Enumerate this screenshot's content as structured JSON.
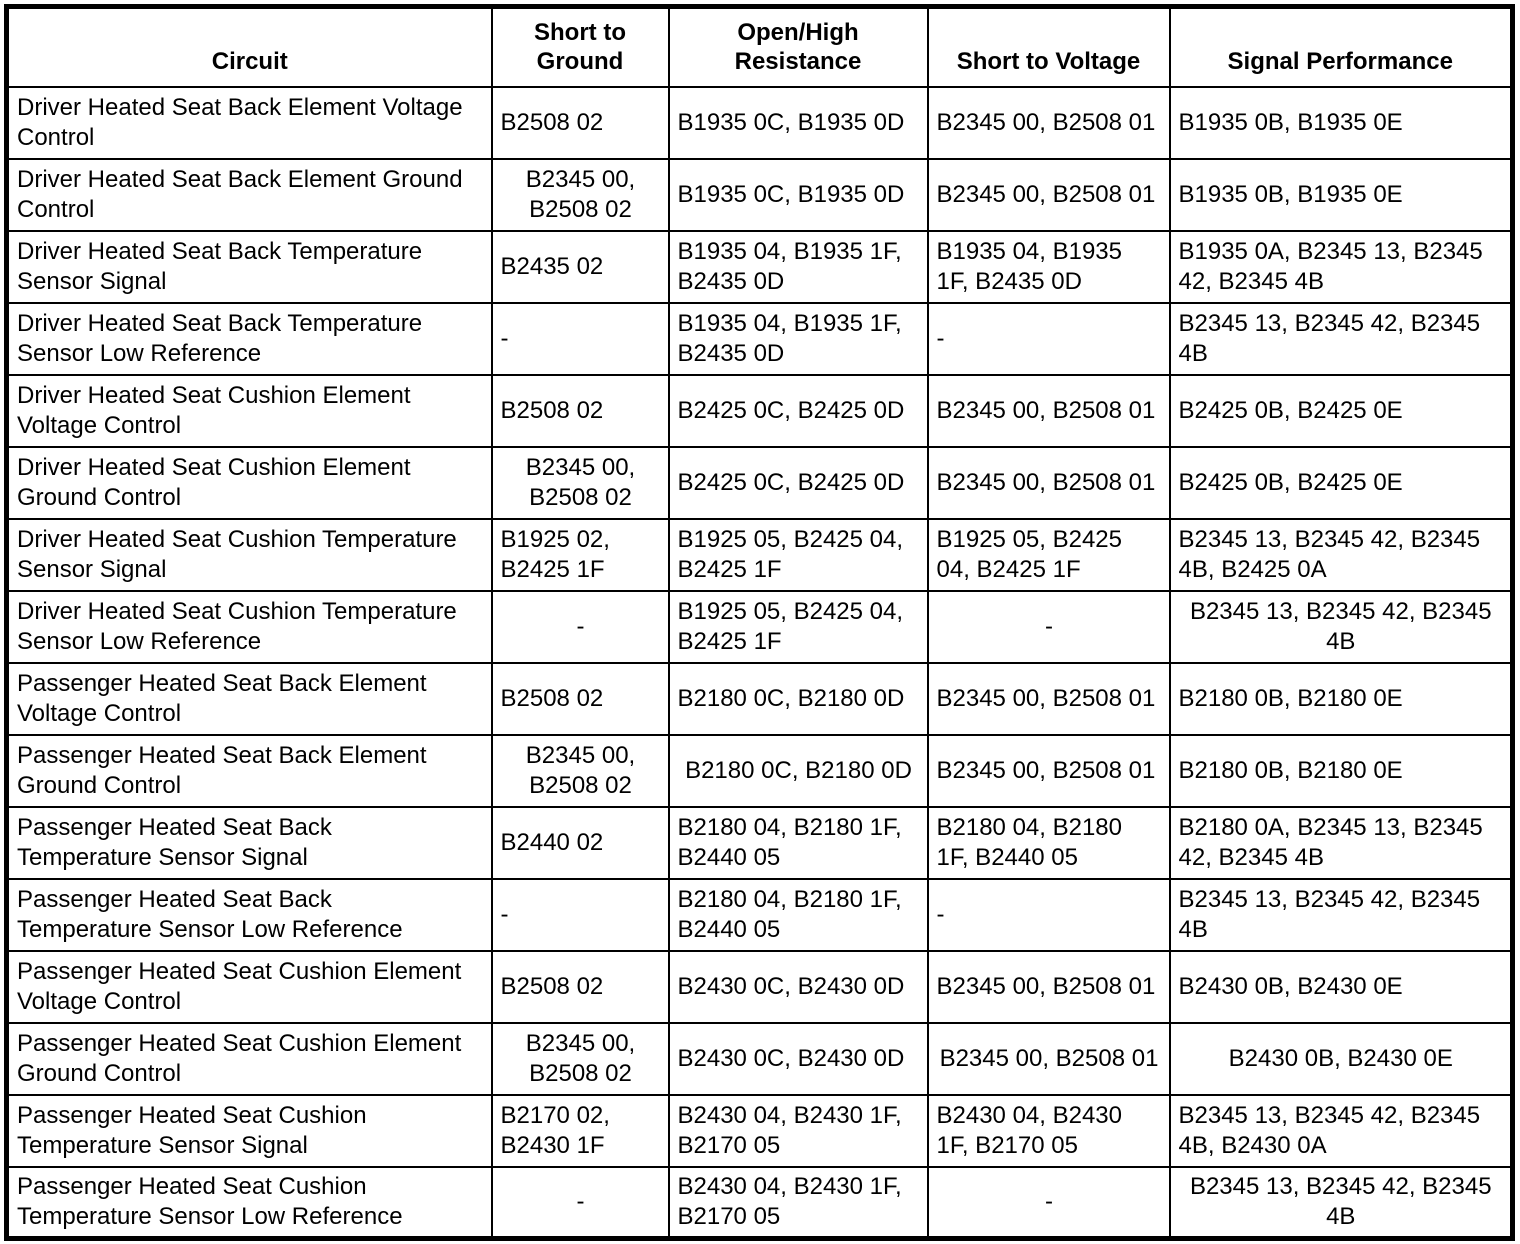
{
  "table": {
    "columns": [
      {
        "label": "Circuit"
      },
      {
        "label": "Short to\nGround"
      },
      {
        "label": "Open/High\nResistance"
      },
      {
        "label": "Short to Voltage"
      },
      {
        "label": "Signal Performance"
      }
    ],
    "rows": [
      {
        "cells": [
          {
            "text": "Driver Heated Seat Back Element Voltage\nControl",
            "align": "left"
          },
          {
            "text": "B2508 02",
            "align": "left"
          },
          {
            "text": "B1935 0C, B1935 0D",
            "align": "left"
          },
          {
            "text": "B2345 00, B2508 01",
            "align": "left"
          },
          {
            "text": "B1935 0B, B1935 0E",
            "align": "left"
          }
        ]
      },
      {
        "cells": [
          {
            "text": "Driver Heated Seat Back Element Ground\nControl",
            "align": "left"
          },
          {
            "text": "B2345 00,\nB2508 02",
            "align": "center"
          },
          {
            "text": "B1935 0C, B1935 0D",
            "align": "left"
          },
          {
            "text": "B2345 00, B2508 01",
            "align": "left"
          },
          {
            "text": "B1935 0B, B1935 0E",
            "align": "left"
          }
        ]
      },
      {
        "cells": [
          {
            "text": "Driver Heated Seat Back Temperature\nSensor Signal",
            "align": "left"
          },
          {
            "text": "B2435 02",
            "align": "left"
          },
          {
            "text": "B1935 04, B1935 1F,\nB2435 0D",
            "align": "left"
          },
          {
            "text": "B1935 04, B1935\n1F, B2435 0D",
            "align": "left"
          },
          {
            "text": "B1935 0A, B2345 13, B2345\n42, B2345 4B",
            "align": "left"
          }
        ]
      },
      {
        "cells": [
          {
            "text": "Driver Heated Seat Back Temperature\nSensor Low Reference",
            "align": "left"
          },
          {
            "text": "-",
            "align": "left"
          },
          {
            "text": "B1935 04, B1935 1F,\nB2435 0D",
            "align": "left"
          },
          {
            "text": "-",
            "align": "left"
          },
          {
            "text": "B2345 13, B2345 42, B2345\n4B",
            "align": "left"
          }
        ]
      },
      {
        "cells": [
          {
            "text": "Driver Heated Seat Cushion Element\nVoltage Control",
            "align": "left"
          },
          {
            "text": "B2508 02",
            "align": "left"
          },
          {
            "text": "B2425 0C, B2425 0D",
            "align": "left"
          },
          {
            "text": "B2345 00, B2508 01",
            "align": "left"
          },
          {
            "text": "B2425 0B, B2425 0E",
            "align": "left"
          }
        ]
      },
      {
        "cells": [
          {
            "text": "Driver Heated Seat Cushion Element\nGround Control",
            "align": "left"
          },
          {
            "text": "B2345 00,\nB2508 02",
            "align": "center"
          },
          {
            "text": "B2425 0C, B2425 0D",
            "align": "left"
          },
          {
            "text": "B2345 00, B2508 01",
            "align": "left"
          },
          {
            "text": "B2425 0B, B2425 0E",
            "align": "left"
          }
        ]
      },
      {
        "cells": [
          {
            "text": "Driver Heated Seat Cushion Temperature\nSensor Signal",
            "align": "left"
          },
          {
            "text": "B1925 02,\nB2425 1F",
            "align": "left"
          },
          {
            "text": "B1925 05, B2425 04,\nB2425 1F",
            "align": "left"
          },
          {
            "text": "B1925 05, B2425\n04, B2425 1F",
            "align": "left"
          },
          {
            "text": "B2345 13, B2345 42, B2345\n4B, B2425 0A",
            "align": "left"
          }
        ]
      },
      {
        "cells": [
          {
            "text": "Driver Heated Seat Cushion Temperature\nSensor Low Reference",
            "align": "left"
          },
          {
            "text": "-",
            "align": "center"
          },
          {
            "text": "B1925 05, B2425 04,\nB2425 1F",
            "align": "left"
          },
          {
            "text": "-",
            "align": "center"
          },
          {
            "text": "B2345 13, B2345 42, B2345\n4B",
            "align": "center"
          }
        ]
      },
      {
        "cells": [
          {
            "text": "Passenger Heated Seat Back Element\nVoltage Control",
            "align": "left"
          },
          {
            "text": "B2508 02",
            "align": "left"
          },
          {
            "text": "B2180 0C, B2180 0D",
            "align": "left"
          },
          {
            "text": "B2345 00, B2508 01",
            "align": "left"
          },
          {
            "text": "B2180 0B, B2180 0E",
            "align": "left"
          }
        ]
      },
      {
        "cells": [
          {
            "text": "Passenger Heated Seat Back Element\nGround Control",
            "align": "left"
          },
          {
            "text": "B2345 00,\nB2508 02",
            "align": "center"
          },
          {
            "text": "B2180 0C, B2180 0D",
            "align": "center"
          },
          {
            "text": "B2345 00, B2508 01",
            "align": "left"
          },
          {
            "text": "B2180 0B, B2180 0E",
            "align": "left"
          }
        ]
      },
      {
        "cells": [
          {
            "text": "Passenger Heated Seat Back\nTemperature Sensor Signal",
            "align": "left"
          },
          {
            "text": "B2440 02",
            "align": "left"
          },
          {
            "text": "B2180 04, B2180 1F,\nB2440 05",
            "align": "left"
          },
          {
            "text": "B2180 04, B2180\n1F, B2440 05",
            "align": "left"
          },
          {
            "text": "B2180 0A, B2345 13, B2345\n42, B2345 4B",
            "align": "left"
          }
        ]
      },
      {
        "cells": [
          {
            "text": "Passenger Heated Seat Back\nTemperature Sensor Low Reference",
            "align": "left"
          },
          {
            "text": "-",
            "align": "left"
          },
          {
            "text": "B2180 04, B2180 1F,\nB2440 05",
            "align": "left"
          },
          {
            "text": "-",
            "align": "left"
          },
          {
            "text": "B2345 13, B2345 42, B2345\n4B",
            "align": "left"
          }
        ]
      },
      {
        "cells": [
          {
            "text": "Passenger Heated Seat Cushion Element\nVoltage Control",
            "align": "left"
          },
          {
            "text": "B2508 02",
            "align": "left"
          },
          {
            "text": "B2430 0C, B2430 0D",
            "align": "left"
          },
          {
            "text": "B2345 00, B2508 01",
            "align": "left"
          },
          {
            "text": "B2430 0B, B2430 0E",
            "align": "left"
          }
        ]
      },
      {
        "cells": [
          {
            "text": "Passenger Heated Seat Cushion Element\nGround Control",
            "align": "left"
          },
          {
            "text": "B2345 00,\nB2508 02",
            "align": "center"
          },
          {
            "text": "B2430 0C, B2430 0D",
            "align": "left"
          },
          {
            "text": "B2345 00, B2508 01",
            "align": "center"
          },
          {
            "text": "B2430 0B, B2430 0E",
            "align": "center"
          }
        ]
      },
      {
        "cells": [
          {
            "text": "Passenger Heated Seat Cushion\nTemperature Sensor Signal",
            "align": "left"
          },
          {
            "text": "B2170 02,\nB2430 1F",
            "align": "left"
          },
          {
            "text": "B2430 04, B2430 1F,\nB2170 05",
            "align": "left"
          },
          {
            "text": "B2430 04, B2430\n1F, B2170 05",
            "align": "left"
          },
          {
            "text": "B2345 13, B2345 42, B2345\n4B, B2430 0A",
            "align": "left"
          }
        ]
      },
      {
        "cells": [
          {
            "text": "Passenger Heated Seat Cushion\nTemperature Sensor Low Reference",
            "align": "left"
          },
          {
            "text": "-",
            "align": "center"
          },
          {
            "text": "B2430 04, B2430 1F,\nB2170 05",
            "align": "left"
          },
          {
            "text": "-",
            "align": "center"
          },
          {
            "text": "B2345 13, B2345 42, B2345\n4B",
            "align": "center"
          }
        ]
      }
    ]
  },
  "style": {
    "border_color": "#000000",
    "text_color": "#000000",
    "background_color": "#ffffff"
  }
}
